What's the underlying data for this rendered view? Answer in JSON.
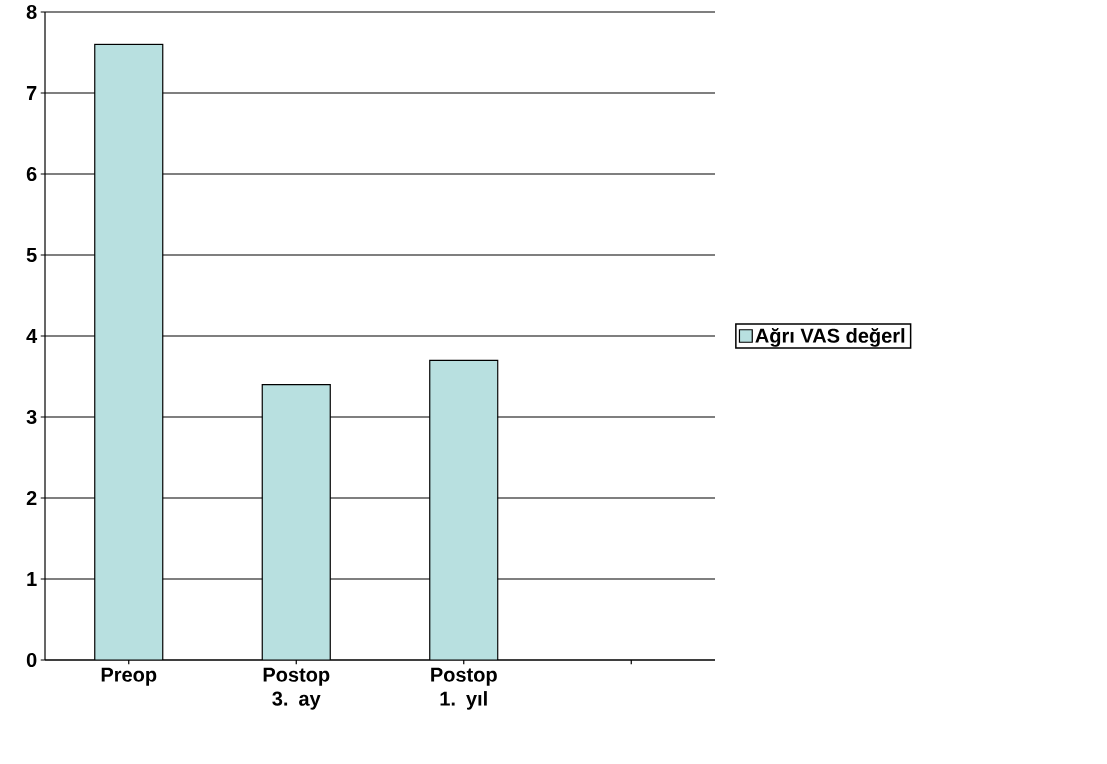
{
  "chart_data": {
    "type": "bar",
    "categories": [
      "Preop",
      "Postop 3. ay",
      "Postop 1. yıl",
      null
    ],
    "series": [
      {
        "name": "Ağrı VAS değerl",
        "color": "#b8e0e0",
        "values": [
          7.6,
          3.4,
          3.7,
          null
        ]
      }
    ],
    "ylim": [
      0,
      8
    ],
    "yticks": [
      0,
      1,
      2,
      3,
      4,
      5,
      6,
      7,
      8
    ],
    "grid": "y",
    "legend": "right"
  }
}
